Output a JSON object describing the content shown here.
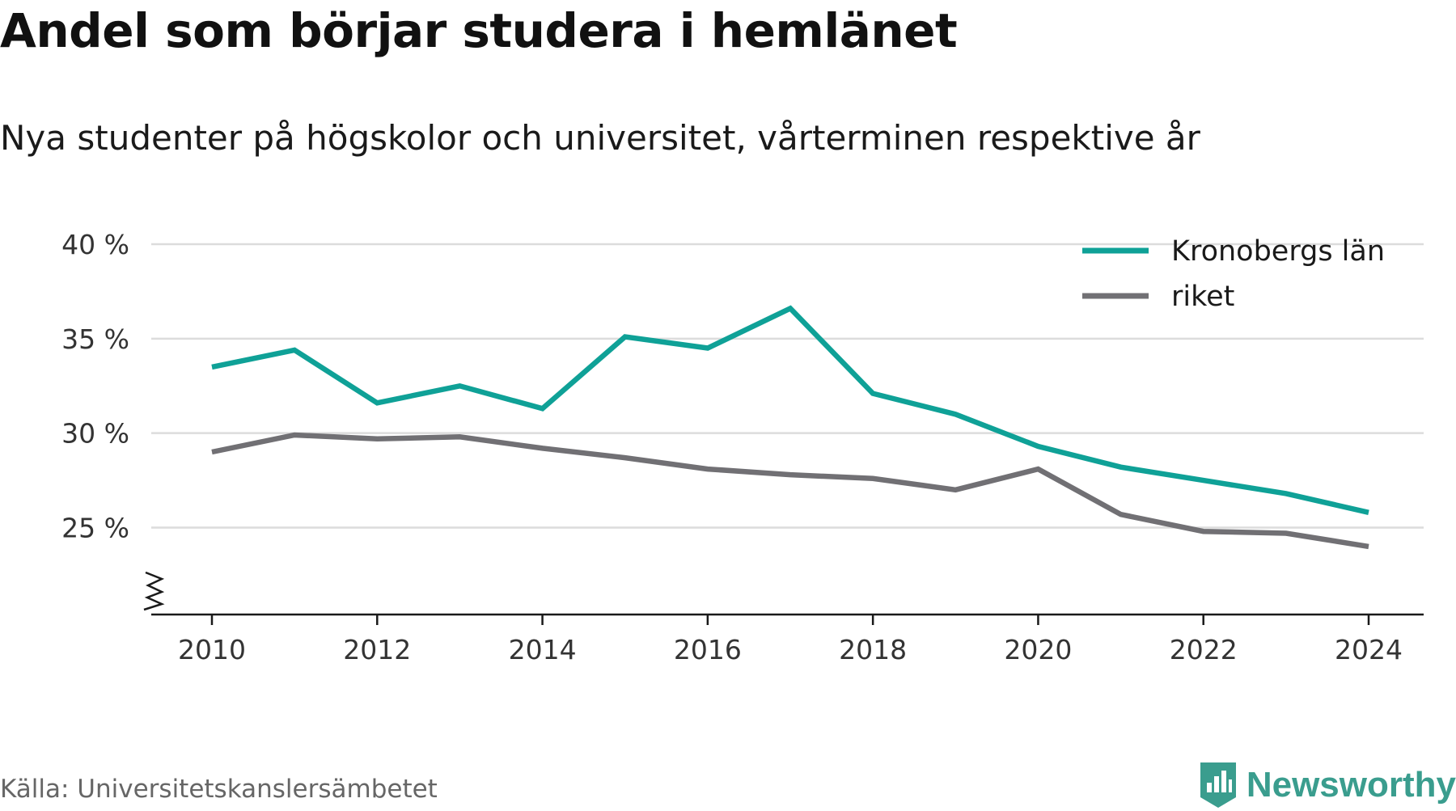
{
  "title": "Andel som börjar studera i hemlänet",
  "subtitle": "Nya studenter på högskolor och universitet, vårterminen respektive år",
  "source": "Källa: Universitetskanslersämbetet",
  "brand": {
    "name": "Newsworthy",
    "icon": "newsworthy-logo-icon",
    "color": "#3a9d8e"
  },
  "chart_data": {
    "type": "line",
    "x": [
      2010,
      2011,
      2012,
      2013,
      2014,
      2015,
      2016,
      2017,
      2018,
      2019,
      2020,
      2021,
      2022,
      2023,
      2024
    ],
    "x_ticks": [
      "2010",
      "2012",
      "2014",
      "2016",
      "2018",
      "2020",
      "2022",
      "2024"
    ],
    "y_ticks": [
      "25 %",
      "30 %",
      "35 %",
      "40 %"
    ],
    "y_tick_values": [
      25,
      30,
      35,
      40
    ],
    "ylim": [
      20.4,
      40
    ],
    "y_axis_break": true,
    "grid": true,
    "legend_position": "top-right",
    "series": [
      {
        "name": "Kronobergs län",
        "color": "#0fa197",
        "values": [
          33.5,
          34.4,
          31.6,
          32.5,
          31.3,
          35.1,
          34.5,
          36.6,
          32.1,
          31.0,
          29.3,
          28.2,
          27.5,
          26.8,
          25.8
        ]
      },
      {
        "name": "riket",
        "color": "#717074",
        "values": [
          29.0,
          29.9,
          29.7,
          29.8,
          29.2,
          28.7,
          28.1,
          27.8,
          27.6,
          27.0,
          28.1,
          25.7,
          24.8,
          24.7,
          24.0
        ]
      }
    ]
  }
}
